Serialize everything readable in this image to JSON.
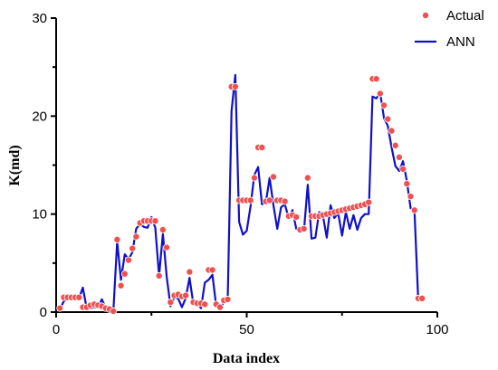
{
  "chart_data": {
    "type": "line",
    "xlabel": "Data index",
    "ylabel": "K(md)",
    "xlim": [
      0,
      100
    ],
    "ylim": [
      0,
      30
    ],
    "xticks": [
      0,
      50,
      100
    ],
    "yticks": [
      0,
      10,
      20,
      30
    ],
    "grid": false,
    "legend_position": "top-right",
    "series": [
      {
        "name": "Actual",
        "style": "scatter",
        "color": "#f0504f",
        "x": [
          1,
          2,
          3,
          4,
          5,
          6,
          7,
          8,
          9,
          10,
          11,
          12,
          13,
          14,
          15,
          16,
          17,
          18,
          19,
          20,
          21,
          22,
          23,
          24,
          25,
          26,
          27,
          28,
          29,
          30,
          31,
          32,
          33,
          34,
          35,
          36,
          37,
          38,
          39,
          40,
          41,
          42,
          43,
          44,
          45,
          46,
          47,
          48,
          49,
          50,
          51,
          52,
          53,
          54,
          55,
          56,
          57,
          58,
          59,
          60,
          61,
          62,
          63,
          64,
          65,
          66,
          67,
          68,
          69,
          70,
          71,
          72,
          73,
          74,
          75,
          76,
          77,
          78,
          79,
          80,
          81,
          82,
          83,
          84,
          85,
          86,
          87,
          88,
          89,
          90,
          91,
          92,
          93,
          94,
          95,
          96
        ],
        "y": [
          0.4,
          1.5,
          1.5,
          1.5,
          1.5,
          1.5,
          0.5,
          0.5,
          0.7,
          0.8,
          0.7,
          0.6,
          0.4,
          0.3,
          0.1,
          7.4,
          2.7,
          3.9,
          5.3,
          6.5,
          7.7,
          9.1,
          9.3,
          9.3,
          9.3,
          9.3,
          3.7,
          8.4,
          6.6,
          1.0,
          1.7,
          1.8,
          1.6,
          1.7,
          4.1,
          1.0,
          0.9,
          0.9,
          0.8,
          4.3,
          4.3,
          0.8,
          0.5,
          1.2,
          1.3,
          23.0,
          23.0,
          11.4,
          11.4,
          11.4,
          11.4,
          13.7,
          16.8,
          16.8,
          11.3,
          11.4,
          13.8,
          11.4,
          11.4,
          11.3,
          9.8,
          9.9,
          9.7,
          8.4,
          8.5,
          13.7,
          9.8,
          9.8,
          9.8,
          9.9,
          10.0,
          10.1,
          10.2,
          10.3,
          10.4,
          10.5,
          10.6,
          10.7,
          10.8,
          10.9,
          11.0,
          11.2,
          23.8,
          23.8,
          22.3,
          21.1,
          19.7,
          18.5,
          17.0,
          15.8,
          14.6,
          13.1,
          11.8,
          10.4,
          1.4,
          1.4
        ]
      },
      {
        "name": "ANN",
        "style": "line",
        "color": "#1010c8",
        "x": [
          1,
          2,
          3,
          4,
          5,
          6,
          7,
          8,
          9,
          10,
          11,
          12,
          13,
          14,
          15,
          16,
          17,
          18,
          19,
          20,
          21,
          22,
          23,
          24,
          25,
          26,
          27,
          28,
          29,
          30,
          31,
          32,
          33,
          34,
          35,
          36,
          37,
          38,
          39,
          40,
          41,
          42,
          43,
          44,
          45,
          46,
          47,
          48,
          49,
          50,
          51,
          52,
          53,
          54,
          55,
          56,
          57,
          58,
          59,
          60,
          61,
          62,
          63,
          64,
          65,
          66,
          67,
          68,
          69,
          70,
          71,
          72,
          73,
          74,
          75,
          76,
          77,
          78,
          79,
          80,
          81,
          82,
          83,
          84,
          85,
          86,
          87,
          88,
          89,
          90,
          91,
          92,
          93,
          94,
          95,
          96
        ],
        "y": [
          0.3,
          1.1,
          1.4,
          1.4,
          1.4,
          1.4,
          2.5,
          0.4,
          0.4,
          0.5,
          0.5,
          1.3,
          0.4,
          0.3,
          0.1,
          7.2,
          3.3,
          5.9,
          5.4,
          6.1,
          8.5,
          9.0,
          8.7,
          8.6,
          9.7,
          8.6,
          3.7,
          8.0,
          3.6,
          0.6,
          1.5,
          1.4,
          0.5,
          1.4,
          3.5,
          0.8,
          1.0,
          0.4,
          3.0,
          3.3,
          3.8,
          0.6,
          0.4,
          1.0,
          1.3,
          20.5,
          24.2,
          9.2,
          7.9,
          8.3,
          10.8,
          14.0,
          14.8,
          11.0,
          11.2,
          13.7,
          10.9,
          8.5,
          10.7,
          11.0,
          9.6,
          10.4,
          8.5,
          8.4,
          8.3,
          13.0,
          7.5,
          7.6,
          10.2,
          9.8,
          7.6,
          10.9,
          9.6,
          10.1,
          7.8,
          10.2,
          8.5,
          9.9,
          8.4,
          9.6,
          10.0,
          10.0,
          22.0,
          21.8,
          22.4,
          19.8,
          19.0,
          16.8,
          14.9,
          14.4,
          15.4,
          13.4,
          10.6,
          10.5,
          1.2,
          1.2
        ]
      }
    ]
  }
}
